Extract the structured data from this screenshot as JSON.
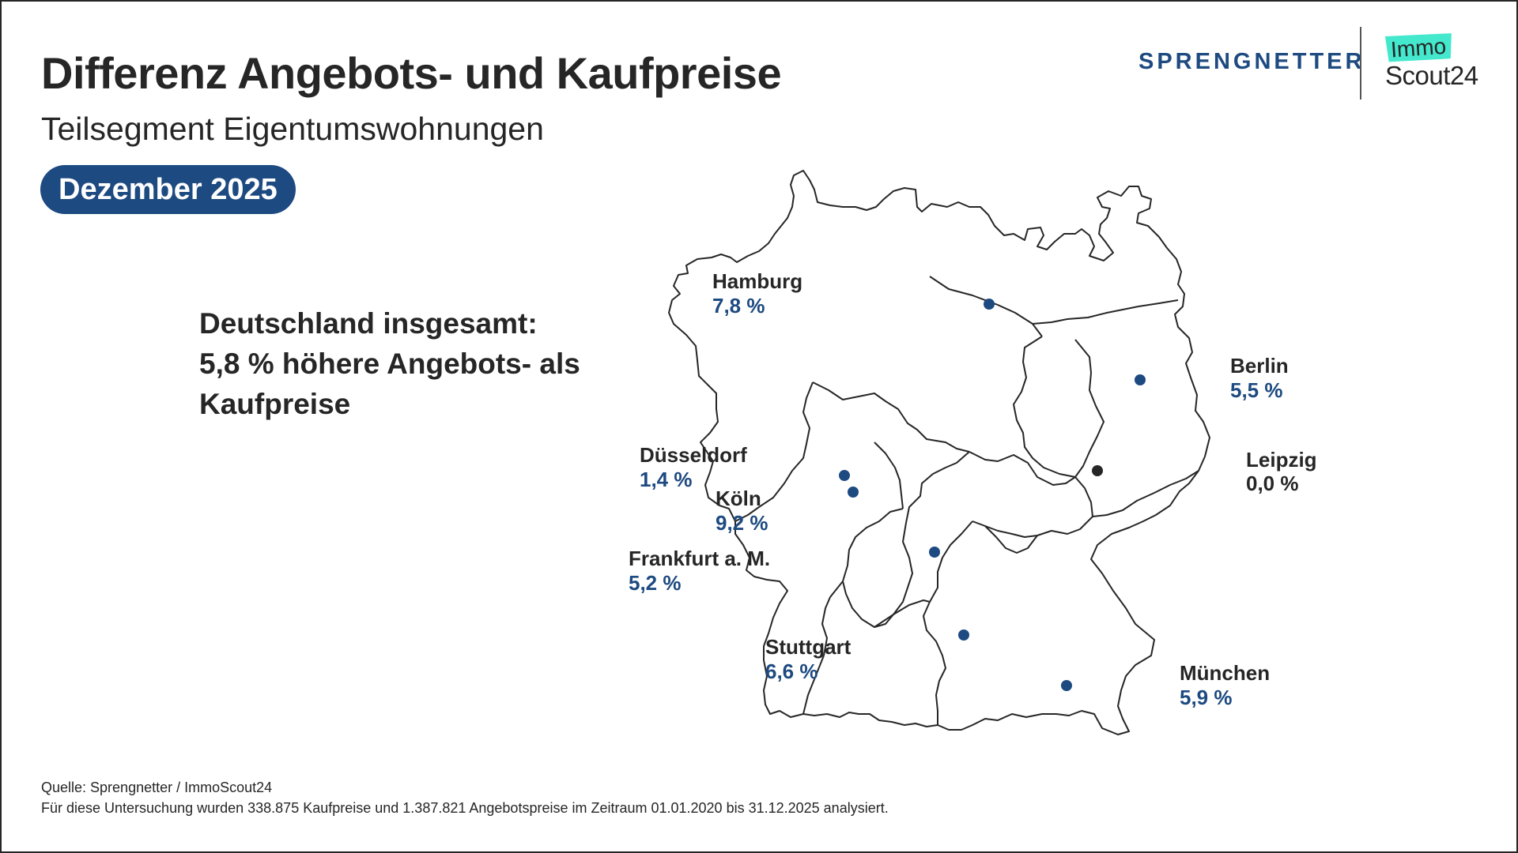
{
  "header": {
    "title": "Differenz Angebots- und Kaufpreise",
    "subtitle": "Teilsegment Eigentumswohnungen",
    "date": "Dezember 2025"
  },
  "logos": {
    "sprengnetter": "SPRENGNETTER",
    "immo": "Immo",
    "scout": "Scout24"
  },
  "summary": {
    "line1": "Deutschland insgesamt:",
    "line2": "5,8 % höhere Angebots- als",
    "line3": "Kaufpreise"
  },
  "colors": {
    "accent": "#1d4a80",
    "neutral": "#262626",
    "brand_immo": "#43e8cd"
  },
  "map_data": {
    "region": "Deutschland",
    "cities": [
      {
        "name": "Hamburg",
        "value": "7,8 %",
        "color": "#1d4a80"
      },
      {
        "name": "Berlin",
        "value": "5,5 %",
        "color": "#1d4a80"
      },
      {
        "name": "Düsseldorf",
        "value": "1,4 %",
        "color": "#1d4a80"
      },
      {
        "name": "Leipzig",
        "value": "0,0 %",
        "color": "#262626"
      },
      {
        "name": "Köln",
        "value": "9,2 %",
        "color": "#1d4a80"
      },
      {
        "name": "Frankfurt a. M.",
        "value": "5,2 %",
        "color": "#1d4a80"
      },
      {
        "name": "Stuttgart",
        "value": "6,6 %",
        "color": "#1d4a80"
      },
      {
        "name": "München",
        "value": "5,9 %",
        "color": "#1d4a80"
      }
    ]
  },
  "footer": {
    "source": "Quelle: Sprengnetter / ImmoScout24",
    "note": "Für diese Untersuchung wurden 338.875 Kaufpreise und 1.387.821 Angebotspreise im Zeitraum 01.01.2020 bis 31.12.2025 analysiert."
  }
}
